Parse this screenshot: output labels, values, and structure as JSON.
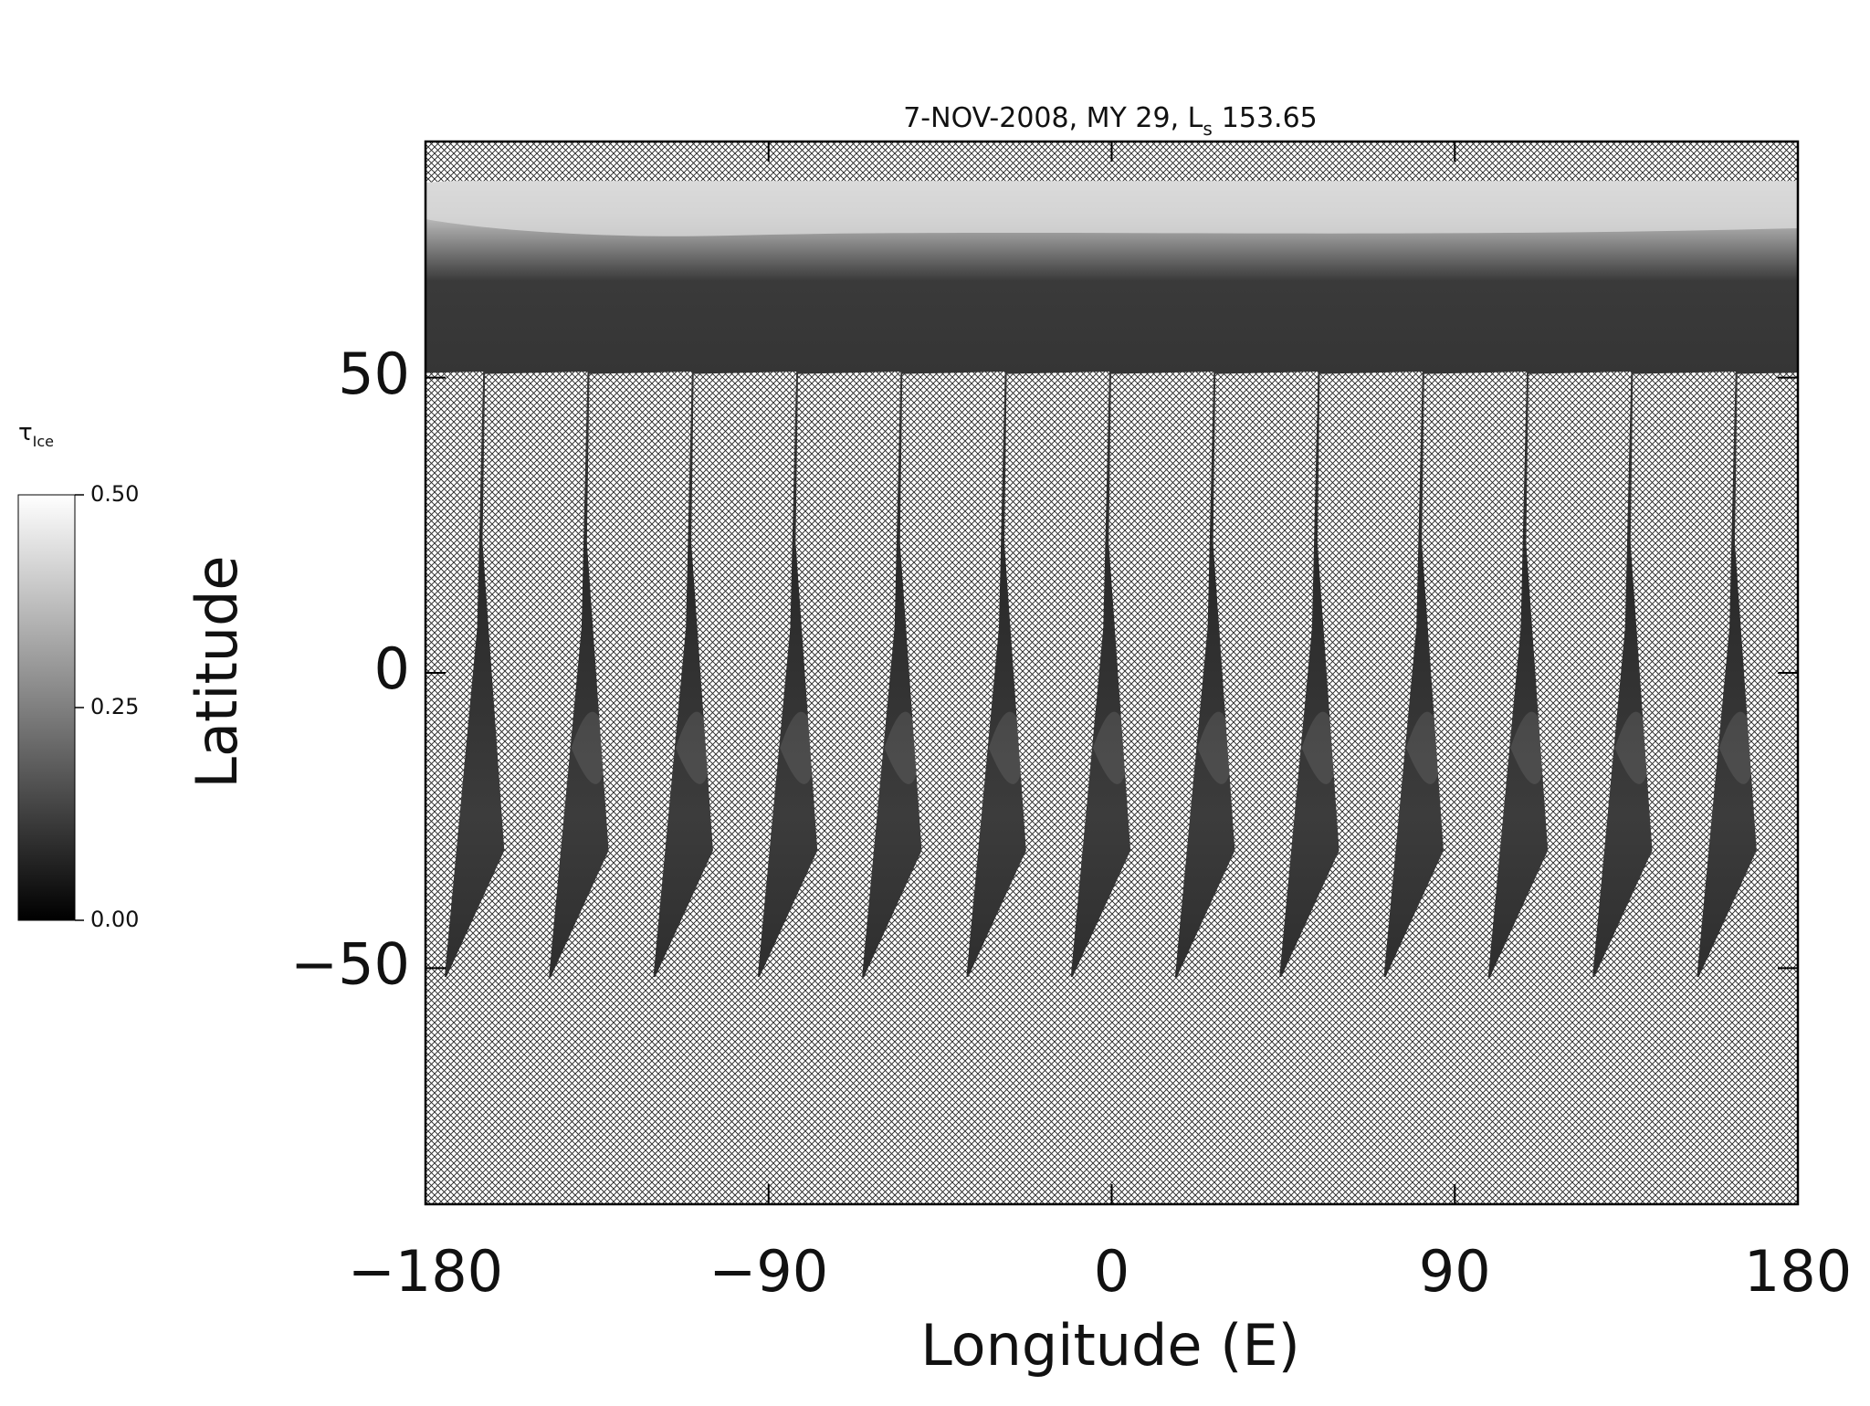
{
  "chart_data": {
    "type": "map",
    "title": {
      "main": "7-NOV-2008, MY 29,  L",
      "sub": "s",
      "value": "153.65"
    },
    "x_label": "Longitude (E)",
    "y_label": "Latitude",
    "xlim": [
      -180,
      180
    ],
    "ylim": [
      -90,
      90
    ],
    "xticks": [
      {
        "value": -180,
        "label": "−180"
      },
      {
        "value": -90,
        "label": "−90"
      },
      0,
      90,
      180
    ],
    "yticks": [
      {
        "value": -50,
        "label": "−50"
      },
      0,
      50
    ],
    "colorbar": {
      "label": "τ",
      "label_sub": "Ice",
      "lim": [
        0,
        0.5
      ],
      "ticks": [
        {
          "value": 0,
          "label": "0.00"
        },
        {
          "value": 0.25,
          "label": "0.25"
        },
        {
          "value": 0.5,
          "label": "0.50"
        }
      ]
    }
  }
}
